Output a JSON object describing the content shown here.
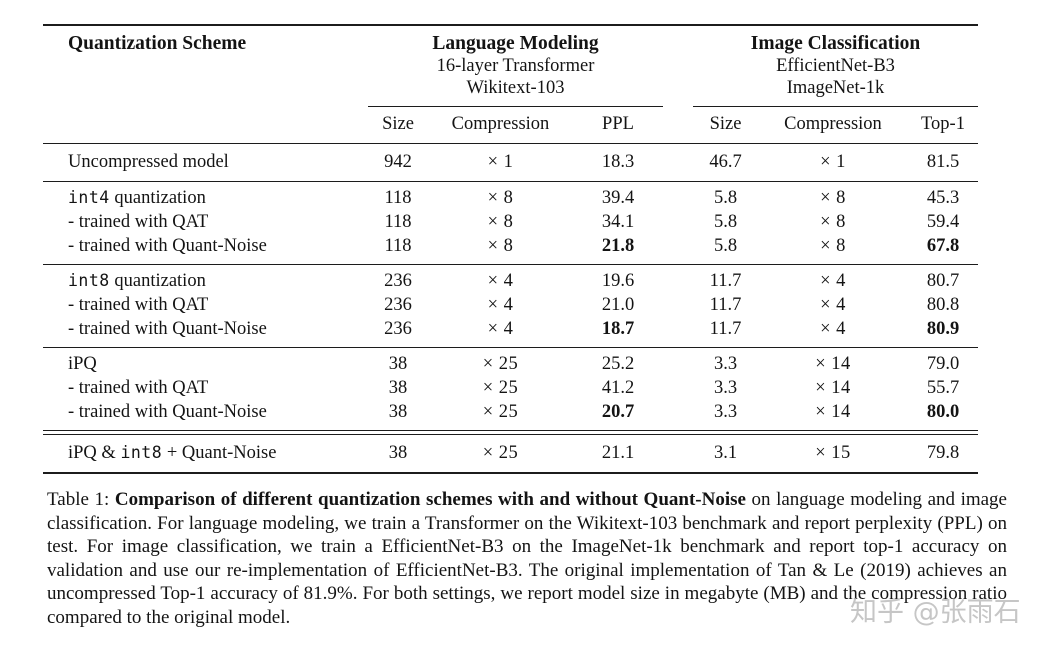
{
  "colors": {
    "text": "#141414",
    "rule": "#1c1c1c",
    "watermark": "#b9b9b9",
    "background": "#ffffff"
  },
  "table": {
    "header": {
      "scheme_label": "Quantization Scheme",
      "groups": [
        {
          "title": "Language Modeling",
          "line2": "16-layer Transformer",
          "line3": "Wikitext-103",
          "columns": [
            "Size",
            "Compression",
            "PPL"
          ]
        },
        {
          "title": "Image Classification",
          "line2": "EfficientNet-B3",
          "line3": "ImageNet-1k",
          "columns": [
            "Size",
            "Compression",
            "Top-1"
          ]
        }
      ]
    },
    "rows": [
      {
        "label_pre": "Uncompressed model",
        "label_mono": "",
        "label_post": "",
        "lm_size": "942",
        "lm_comp": "× 1",
        "ppl": "18.3",
        "ic_size": "46.7",
        "ic_comp": "× 1",
        "top1": "81.5"
      },
      {
        "label_pre": "",
        "label_mono": "int4",
        "label_post": " quantization",
        "lm_size": "118",
        "lm_comp": "× 8",
        "ppl": "39.4",
        "ic_size": "5.8",
        "ic_comp": "× 8",
        "top1": "45.3"
      },
      {
        "label_pre": "- trained with QAT",
        "label_mono": "",
        "label_post": "",
        "lm_size": "118",
        "lm_comp": "× 8",
        "ppl": "34.1",
        "ic_size": "5.8",
        "ic_comp": "× 8",
        "top1": "59.4"
      },
      {
        "label_pre": "- trained with Quant-Noise",
        "label_mono": "",
        "label_post": "",
        "lm_size": "118",
        "lm_comp": "× 8",
        "ppl": "21.8",
        "ic_size": "5.8",
        "ic_comp": "× 8",
        "top1": "67.8"
      },
      {
        "label_pre": "",
        "label_mono": "int8",
        "label_post": " quantization",
        "lm_size": "236",
        "lm_comp": "× 4",
        "ppl": "19.6",
        "ic_size": "11.7",
        "ic_comp": "× 4",
        "top1": "80.7"
      },
      {
        "label_pre": "- trained with QAT",
        "label_mono": "",
        "label_post": "",
        "lm_size": "236",
        "lm_comp": "× 4",
        "ppl": "21.0",
        "ic_size": "11.7",
        "ic_comp": "× 4",
        "top1": "80.8"
      },
      {
        "label_pre": "- trained with Quant-Noise",
        "label_mono": "",
        "label_post": "",
        "lm_size": "236",
        "lm_comp": "× 4",
        "ppl": "18.7",
        "ic_size": "11.7",
        "ic_comp": "× 4",
        "top1": "80.9"
      },
      {
        "label_pre": "iPQ",
        "label_mono": "",
        "label_post": "",
        "lm_size": "38",
        "lm_comp": "× 25",
        "ppl": "25.2",
        "ic_size": "3.3",
        "ic_comp": "× 14",
        "top1": "79.0"
      },
      {
        "label_pre": "- trained with QAT",
        "label_mono": "",
        "label_post": "",
        "lm_size": "38",
        "lm_comp": "× 25",
        "ppl": "41.2",
        "ic_size": "3.3",
        "ic_comp": "× 14",
        "top1": "55.7"
      },
      {
        "label_pre": "- trained with Quant-Noise",
        "label_mono": "",
        "label_post": "",
        "lm_size": "38",
        "lm_comp": "× 25",
        "ppl": "20.7",
        "ic_size": "3.3",
        "ic_comp": "× 14",
        "top1": "80.0"
      },
      {
        "label_pre": "iPQ & ",
        "label_mono": "int8",
        "label_post": " + Quant-Noise",
        "lm_size": "38",
        "lm_comp": "× 25",
        "ppl": "21.1",
        "ic_size": "3.1",
        "ic_comp": "× 15",
        "top1": "79.8"
      }
    ]
  },
  "caption": {
    "prefix": "Table 1: ",
    "bold": "Comparison of different quantization schemes with and without Quant-Noise",
    "rest": " on language modeling and image classification. For language modeling, we train a Transformer on the Wikitext-103 benchmark and report perplexity (PPL) on test. For image classification, we train a EfficientNet-B3 on the ImageNet-1k benchmark and report top-1 accuracy on validation and use our re-implementation of EfficientNet-B3. The original implementation of Tan & Le (2019) achieves an uncompressed Top-1 accuracy of 81.9%. For both settings, we report model size in megabyte (MB) and the compression ratio compared to the original model."
  },
  "watermark": {
    "text": "知乎 @张雨石"
  }
}
